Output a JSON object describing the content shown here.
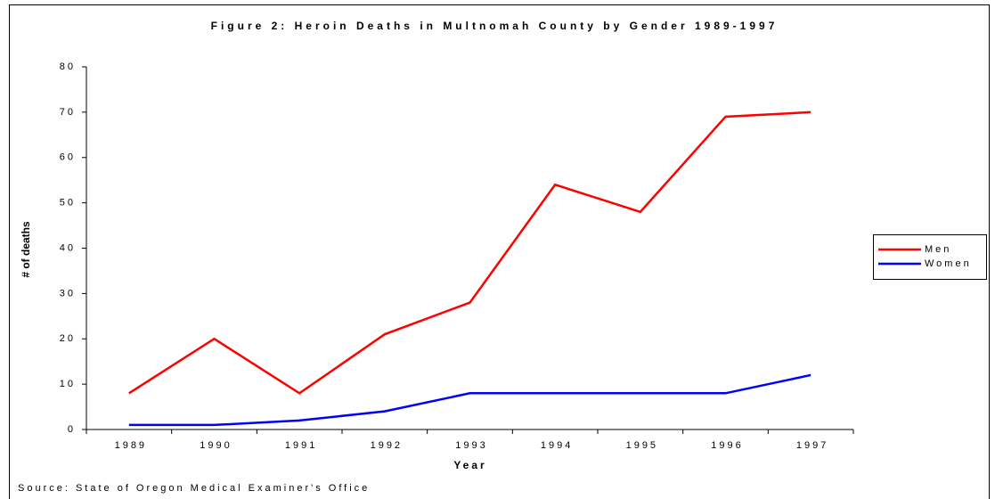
{
  "chart_data": {
    "type": "line",
    "title": "Figure 2: Heroin Deaths in Multnomah County by Gender 1989-1997",
    "x_label": "Year",
    "y_label": "# of deaths",
    "source": "Source: State of Oregon Medical Examiner's Office",
    "categories": [
      "1989",
      "1990",
      "1991",
      "1992",
      "1993",
      "1994",
      "1995",
      "1996",
      "1997"
    ],
    "series": [
      {
        "name": "Men",
        "color": "#ff0000",
        "values": [
          8,
          20,
          8,
          21,
          28,
          54,
          48,
          69,
          70
        ]
      },
      {
        "name": "Women",
        "color": "#0000ff",
        "values": [
          1,
          1,
          2,
          4,
          8,
          8,
          8,
          8,
          12
        ]
      }
    ],
    "ylim": [
      0,
      80
    ],
    "yticks": [
      0,
      10,
      20,
      30,
      40,
      50,
      60,
      70,
      80
    ],
    "grid": false,
    "legend": "right"
  }
}
